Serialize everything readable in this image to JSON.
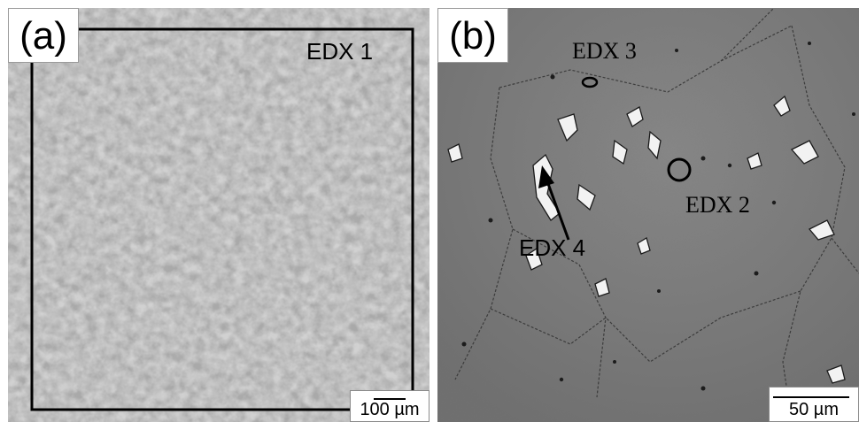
{
  "panel_a": {
    "label": "(a)",
    "edx_label": "EDX 1",
    "scale_bar": "100 µm"
  },
  "panel_b": {
    "label": "(b)",
    "edx_labels": [
      "EDX 3",
      "EDX 2",
      "EDX 4"
    ],
    "scale_bar": "50 µm"
  },
  "colors": {
    "panel_a_background": "#a9a9a9",
    "panel_b_background": "#7a7a7a",
    "marker": "#000000",
    "background": "#ffffff"
  }
}
